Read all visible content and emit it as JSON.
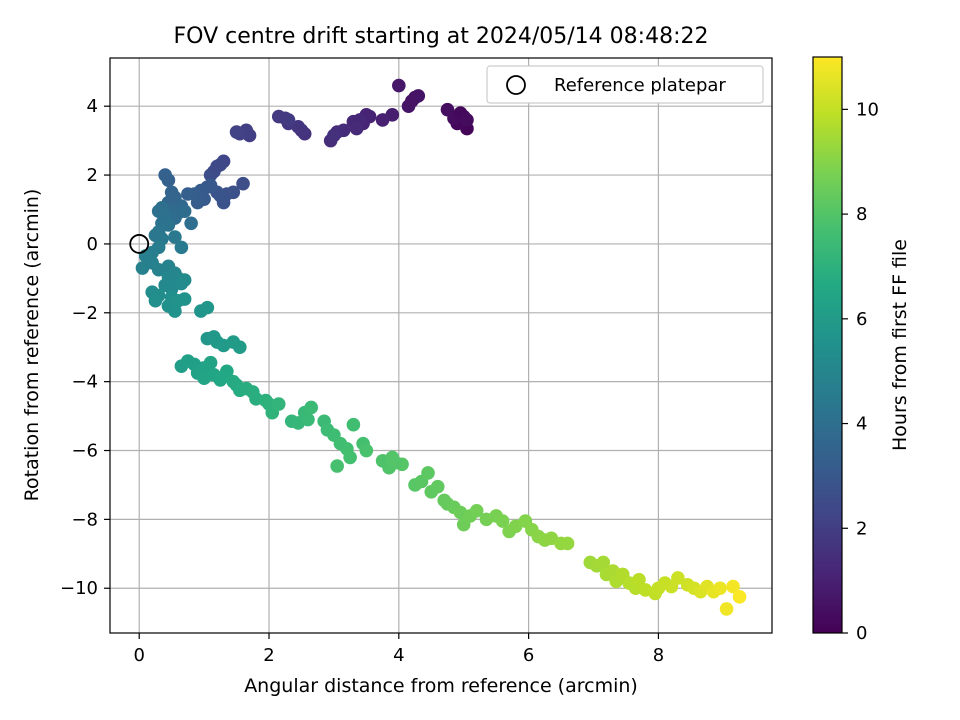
{
  "chart_data": {
    "type": "scatter",
    "title": "FOV centre drift starting at 2024/05/14 08:48:22",
    "xlabel": "Angular distance from reference (arcmin)",
    "ylabel": "Rotation from reference (arcmin)",
    "xlim": [
      -0.45,
      9.75
    ],
    "ylim": [
      -11.3,
      5.4
    ],
    "x_ticks": [
      0,
      2,
      4,
      6,
      8
    ],
    "y_ticks": [
      -10,
      -8,
      -6,
      -4,
      -2,
      0,
      2,
      4
    ],
    "grid": true,
    "legend": {
      "position": "top-right",
      "entries": [
        "Reference platepar"
      ]
    },
    "reference_point": {
      "x": 0,
      "y": 0
    },
    "colorbar": {
      "label": "Hours from first FF file",
      "colormap": "viridis",
      "range": [
        0,
        11
      ],
      "ticks": [
        0,
        2,
        4,
        6,
        8,
        10
      ]
    },
    "points": [
      [
        5.05,
        3.35,
        0.1
      ],
      [
        4.9,
        3.5,
        0.2
      ],
      [
        5.0,
        3.7,
        0.3
      ],
      [
        4.85,
        3.65,
        0.35
      ],
      [
        4.75,
        3.9,
        0.4
      ],
      [
        4.95,
        3.8,
        0.25
      ],
      [
        5.05,
        3.6,
        0.3
      ],
      [
        4.25,
        4.25,
        0.5
      ],
      [
        4.15,
        4.0,
        0.6
      ],
      [
        4.2,
        4.15,
        0.55
      ],
      [
        4.0,
        4.6,
        0.7
      ],
      [
        4.3,
        4.3,
        0.6
      ],
      [
        3.9,
        3.75,
        0.9
      ],
      [
        3.75,
        3.6,
        1.0
      ],
      [
        3.55,
        3.7,
        1.05
      ],
      [
        3.5,
        3.75,
        1.1
      ],
      [
        3.45,
        3.5,
        1.1
      ],
      [
        3.4,
        3.6,
        1.2
      ],
      [
        3.3,
        3.55,
        1.25
      ],
      [
        3.35,
        3.35,
        1.3
      ],
      [
        3.15,
        3.3,
        1.35
      ],
      [
        3.05,
        3.25,
        1.4
      ],
      [
        2.95,
        3.0,
        1.45
      ],
      [
        3.0,
        3.15,
        1.5
      ],
      [
        2.55,
        3.2,
        1.6
      ],
      [
        2.5,
        3.3,
        1.65
      ],
      [
        2.45,
        3.4,
        1.7
      ],
      [
        2.3,
        3.5,
        1.75
      ],
      [
        2.25,
        3.65,
        1.8
      ],
      [
        2.15,
        3.7,
        1.85
      ],
      [
        2.3,
        3.6,
        1.9
      ],
      [
        1.7,
        3.15,
        2.0
      ],
      [
        1.65,
        3.3,
        2.05
      ],
      [
        1.55,
        3.2,
        2.1
      ],
      [
        1.5,
        3.25,
        2.15
      ],
      [
        1.3,
        2.4,
        2.3
      ],
      [
        1.25,
        2.3,
        2.4
      ],
      [
        1.15,
        2.1,
        2.5
      ],
      [
        1.1,
        2.0,
        2.55
      ],
      [
        1.2,
        2.25,
        2.45
      ],
      [
        1.6,
        1.75,
        2.6
      ],
      [
        1.45,
        1.5,
        2.7
      ],
      [
        1.35,
        1.45,
        2.75
      ],
      [
        1.25,
        1.4,
        2.8
      ],
      [
        1.3,
        1.2,
        2.85
      ],
      [
        1.2,
        1.5,
        2.9
      ],
      [
        1.05,
        1.65,
        3.0
      ],
      [
        0.95,
        1.55,
        3.1
      ],
      [
        1.0,
        1.3,
        3.15
      ],
      [
        0.9,
        1.2,
        3.2
      ],
      [
        0.85,
        1.45,
        3.25
      ],
      [
        0.75,
        1.45,
        3.3
      ],
      [
        1.1,
        1.7,
        3.05
      ],
      [
        0.4,
        2.0,
        3.4
      ],
      [
        0.45,
        1.85,
        3.45
      ],
      [
        0.5,
        1.5,
        3.5
      ],
      [
        0.55,
        1.35,
        3.55
      ],
      [
        0.45,
        1.2,
        3.6
      ],
      [
        0.65,
        1.1,
        3.7
      ],
      [
        0.6,
        0.9,
        3.75
      ],
      [
        0.5,
        0.95,
        3.8
      ],
      [
        0.55,
        0.75,
        3.85
      ],
      [
        0.7,
        0.95,
        3.9
      ],
      [
        0.8,
        0.6,
        3.95
      ],
      [
        0.35,
        1.05,
        4.0
      ],
      [
        0.3,
        0.95,
        4.05
      ],
      [
        0.4,
        0.8,
        4.1
      ],
      [
        0.35,
        0.6,
        4.15
      ],
      [
        0.45,
        0.55,
        4.2
      ],
      [
        0.3,
        0.35,
        4.25
      ],
      [
        0.25,
        0.25,
        4.35
      ],
      [
        0.35,
        0.15,
        4.4
      ],
      [
        0.55,
        0.2,
        4.45
      ],
      [
        0.65,
        -0.1,
        4.5
      ],
      [
        0.3,
        -0.1,
        4.55
      ],
      [
        0.2,
        -0.25,
        4.6
      ],
      [
        0.1,
        -0.35,
        4.7
      ],
      [
        0.2,
        -0.55,
        4.75
      ],
      [
        0.05,
        -0.7,
        4.8
      ],
      [
        0.3,
        -0.75,
        4.85
      ],
      [
        0.45,
        -0.65,
        4.9
      ],
      [
        0.55,
        -0.85,
        4.95
      ],
      [
        0.6,
        -1.0,
        5.0
      ],
      [
        0.45,
        -0.95,
        5.05
      ],
      [
        0.4,
        -1.2,
        5.1
      ],
      [
        0.5,
        -1.3,
        5.15
      ],
      [
        0.65,
        -1.15,
        5.2
      ],
      [
        0.7,
        -1.05,
        5.25
      ],
      [
        0.2,
        -1.4,
        5.3
      ],
      [
        0.3,
        -1.5,
        5.35
      ],
      [
        0.25,
        -1.65,
        5.4
      ],
      [
        0.5,
        -1.55,
        5.45
      ],
      [
        0.45,
        -1.8,
        5.5
      ],
      [
        0.55,
        -1.95,
        5.55
      ],
      [
        0.6,
        -1.65,
        5.6
      ],
      [
        0.7,
        -1.6,
        5.6
      ],
      [
        0.95,
        -1.95,
        5.7
      ],
      [
        1.05,
        -1.85,
        5.75
      ],
      [
        1.05,
        -2.75,
        5.8
      ],
      [
        1.15,
        -2.7,
        5.85
      ],
      [
        1.2,
        -2.85,
        5.9
      ],
      [
        1.3,
        -2.95,
        5.95
      ],
      [
        1.45,
        -2.85,
        6.0
      ],
      [
        1.55,
        -3.0,
        6.05
      ],
      [
        0.65,
        -3.55,
        6.1
      ],
      [
        0.75,
        -3.4,
        6.15
      ],
      [
        0.85,
        -3.5,
        6.2
      ],
      [
        0.9,
        -3.75,
        6.25
      ],
      [
        1.0,
        -3.6,
        6.3
      ],
      [
        1.1,
        -3.45,
        6.35
      ],
      [
        1.0,
        -3.9,
        6.4
      ],
      [
        1.15,
        -3.8,
        6.45
      ],
      [
        1.25,
        -3.95,
        6.5
      ],
      [
        1.35,
        -3.7,
        6.55
      ],
      [
        1.3,
        -3.85,
        6.6
      ],
      [
        1.45,
        -4.0,
        6.65
      ],
      [
        1.5,
        -4.1,
        6.7
      ],
      [
        1.55,
        -4.25,
        6.75
      ],
      [
        1.65,
        -4.2,
        6.8
      ],
      [
        1.75,
        -4.3,
        6.85
      ],
      [
        1.8,
        -4.5,
        6.9
      ],
      [
        1.95,
        -4.55,
        7.0
      ],
      [
        2.0,
        -4.65,
        7.05
      ],
      [
        2.05,
        -4.9,
        7.1
      ],
      [
        2.15,
        -4.65,
        7.15
      ],
      [
        2.35,
        -5.15,
        7.2
      ],
      [
        2.45,
        -5.2,
        7.25
      ],
      [
        2.55,
        -4.9,
        7.3
      ],
      [
        2.6,
        -5.1,
        7.35
      ],
      [
        2.65,
        -4.75,
        7.4
      ],
      [
        2.85,
        -5.15,
        7.45
      ],
      [
        2.9,
        -5.4,
        7.5
      ],
      [
        3.0,
        -5.55,
        7.55
      ],
      [
        3.1,
        -5.8,
        7.6
      ],
      [
        3.2,
        -5.95,
        7.65
      ],
      [
        3.25,
        -6.2,
        7.7
      ],
      [
        3.05,
        -6.45,
        7.75
      ],
      [
        3.3,
        -5.25,
        7.6
      ],
      [
        3.45,
        -5.8,
        7.7
      ],
      [
        3.5,
        -6.0,
        7.8
      ],
      [
        3.75,
        -6.3,
        7.9
      ],
      [
        3.85,
        -6.5,
        7.95
      ],
      [
        3.9,
        -6.2,
        8.0
      ],
      [
        4.05,
        -6.4,
        8.05
      ],
      [
        3.95,
        -6.35,
        8.0
      ],
      [
        4.25,
        -7.0,
        8.1
      ],
      [
        4.35,
        -6.9,
        8.15
      ],
      [
        4.45,
        -6.65,
        8.2
      ],
      [
        4.5,
        -7.2,
        8.25
      ],
      [
        4.6,
        -7.05,
        8.3
      ],
      [
        4.7,
        -7.45,
        8.35
      ],
      [
        4.75,
        -7.55,
        8.4
      ],
      [
        4.85,
        -7.65,
        8.45
      ],
      [
        4.95,
        -7.8,
        8.5
      ],
      [
        5.0,
        -8.15,
        8.55
      ],
      [
        5.1,
        -7.9,
        8.6
      ],
      [
        5.2,
        -7.75,
        8.65
      ],
      [
        5.35,
        -8.0,
        8.7
      ],
      [
        5.5,
        -7.9,
        8.75
      ],
      [
        5.6,
        -8.05,
        8.8
      ],
      [
        5.7,
        -8.35,
        8.85
      ],
      [
        5.8,
        -8.2,
        8.9
      ],
      [
        5.95,
        -8.05,
        8.95
      ],
      [
        6.05,
        -8.3,
        9.0
      ],
      [
        6.15,
        -8.5,
        9.05
      ],
      [
        6.25,
        -8.6,
        9.1
      ],
      [
        6.35,
        -8.55,
        9.15
      ],
      [
        6.5,
        -8.7,
        9.2
      ],
      [
        6.6,
        -8.7,
        9.25
      ],
      [
        6.95,
        -9.25,
        9.4
      ],
      [
        7.05,
        -9.35,
        9.45
      ],
      [
        7.15,
        -9.25,
        9.5
      ],
      [
        7.2,
        -9.6,
        9.55
      ],
      [
        7.3,
        -9.5,
        9.6
      ],
      [
        7.35,
        -9.8,
        9.65
      ],
      [
        7.45,
        -9.6,
        9.7
      ],
      [
        7.55,
        -9.85,
        9.75
      ],
      [
        7.65,
        -10.0,
        9.8
      ],
      [
        7.7,
        -9.75,
        9.85
      ],
      [
        7.8,
        -10.05,
        9.9
      ],
      [
        7.95,
        -10.15,
        9.95
      ],
      [
        8.0,
        -10.0,
        10.0
      ],
      [
        8.1,
        -9.85,
        10.05
      ],
      [
        8.2,
        -9.95,
        10.1
      ],
      [
        8.3,
        -9.7,
        10.15
      ],
      [
        8.45,
        -9.9,
        10.2
      ],
      [
        8.55,
        -10.0,
        10.3
      ],
      [
        8.65,
        -10.1,
        10.4
      ],
      [
        8.75,
        -9.95,
        10.5
      ],
      [
        8.85,
        -10.1,
        10.6
      ],
      [
        8.95,
        -10.0,
        10.7
      ],
      [
        9.05,
        -10.6,
        10.8
      ],
      [
        9.15,
        -9.95,
        10.85
      ],
      [
        9.25,
        -10.25,
        10.95
      ]
    ]
  }
}
